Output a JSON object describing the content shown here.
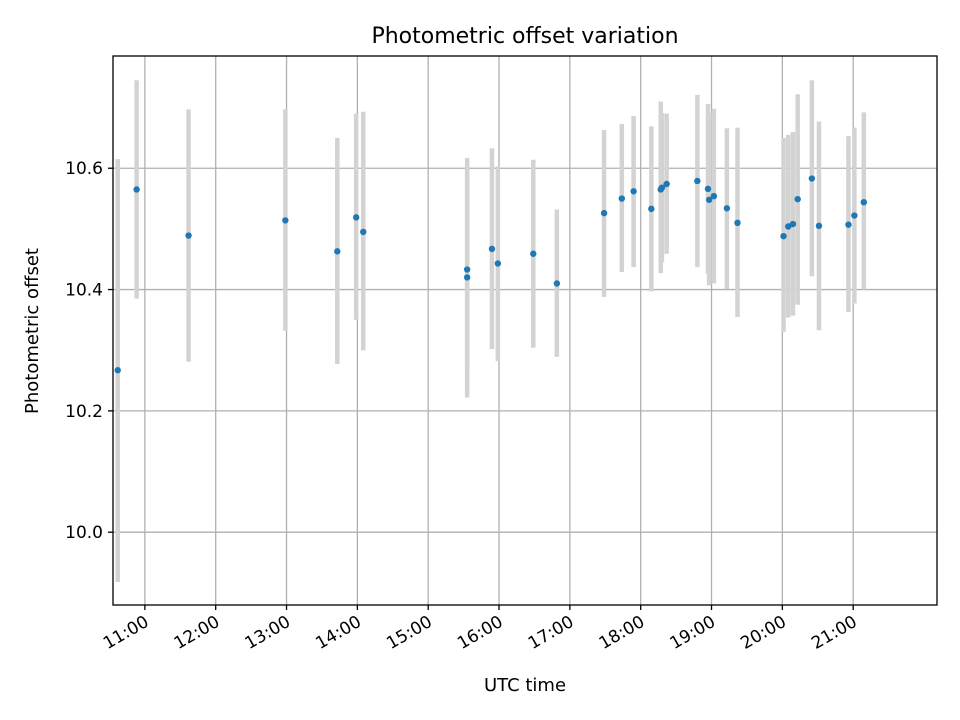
{
  "chart_data": {
    "type": "scatter",
    "title": "Photometric offset variation",
    "xlabel": "UTC time",
    "ylabel": "Photometric offset",
    "x_unit": "hour",
    "xlim": [
      "10:33",
      "22:11"
    ],
    "ylim": [
      9.88,
      10.785
    ],
    "x_ticks": [
      "11:00",
      "12:00",
      "13:00",
      "14:00",
      "15:00",
      "16:00",
      "17:00",
      "18:00",
      "19:00",
      "20:00",
      "21:00"
    ],
    "y_ticks": [
      "10.0",
      "10.2",
      "10.4",
      "10.6"
    ],
    "grid": true,
    "colors": {
      "point": "#1f77b4",
      "errorbar": "#d3d3d3"
    },
    "points": [
      {
        "x": "10:37",
        "y": 10.267,
        "y_low": 9.918,
        "y_high": 10.615
      },
      {
        "x": "10:53",
        "y": 10.565,
        "y_low": 10.385,
        "y_high": 10.745
      },
      {
        "x": "11:37",
        "y": 10.489,
        "y_low": 10.281,
        "y_high": 10.697
      },
      {
        "x": "12:59",
        "y": 10.514,
        "y_low": 10.332,
        "y_high": 10.697
      },
      {
        "x": "13:43",
        "y": 10.463,
        "y_low": 10.277,
        "y_high": 10.65
      },
      {
        "x": "13:59",
        "y": 10.519,
        "y_low": 10.35,
        "y_high": 10.69
      },
      {
        "x": "14:05",
        "y": 10.495,
        "y_low": 10.3,
        "y_high": 10.693
      },
      {
        "x": "15:33",
        "y": 10.42,
        "y_low": 10.222,
        "y_high": 10.617
      },
      {
        "x": "15:33",
        "y": 10.433,
        "y_low": 10.263,
        "y_high": 10.603
      },
      {
        "x": "15:54",
        "y": 10.467,
        "y_low": 10.302,
        "y_high": 10.633
      },
      {
        "x": "15:59",
        "y": 10.443,
        "y_low": 10.282,
        "y_high": 10.603
      },
      {
        "x": "16:29",
        "y": 10.459,
        "y_low": 10.304,
        "y_high": 10.614
      },
      {
        "x": "16:49",
        "y": 10.41,
        "y_low": 10.289,
        "y_high": 10.532
      },
      {
        "x": "17:29",
        "y": 10.526,
        "y_low": 10.388,
        "y_high": 10.663
      },
      {
        "x": "17:44",
        "y": 10.55,
        "y_low": 10.429,
        "y_high": 10.673
      },
      {
        "x": "17:54",
        "y": 10.562,
        "y_low": 10.437,
        "y_high": 10.686
      },
      {
        "x": "18:09",
        "y": 10.533,
        "y_low": 10.397,
        "y_high": 10.669
      },
      {
        "x": "18:17",
        "y": 10.565,
        "y_low": 10.427,
        "y_high": 10.71
      },
      {
        "x": "18:18",
        "y": 10.568,
        "y_low": 10.445,
        "y_high": 10.691
      },
      {
        "x": "18:22",
        "y": 10.574,
        "y_low": 10.459,
        "y_high": 10.69
      },
      {
        "x": "18:48",
        "y": 10.579,
        "y_low": 10.437,
        "y_high": 10.721
      },
      {
        "x": "18:57",
        "y": 10.566,
        "y_low": 10.426,
        "y_high": 10.706
      },
      {
        "x": "18:58",
        "y": 10.548,
        "y_low": 10.407,
        "y_high": 10.69
      },
      {
        "x": "19:02",
        "y": 10.554,
        "y_low": 10.41,
        "y_high": 10.698
      },
      {
        "x": "19:13",
        "y": 10.534,
        "y_low": 10.401,
        "y_high": 10.666
      },
      {
        "x": "19:22",
        "y": 10.51,
        "y_low": 10.355,
        "y_high": 10.667
      },
      {
        "x": "20:01",
        "y": 10.488,
        "y_low": 10.33,
        "y_high": 10.65
      },
      {
        "x": "20:05",
        "y": 10.504,
        "y_low": 10.354,
        "y_high": 10.655
      },
      {
        "x": "20:09",
        "y": 10.508,
        "y_low": 10.357,
        "y_high": 10.66
      },
      {
        "x": "20:13",
        "y": 10.549,
        "y_low": 10.375,
        "y_high": 10.722
      },
      {
        "x": "20:25",
        "y": 10.583,
        "y_low": 10.422,
        "y_high": 10.745
      },
      {
        "x": "20:31",
        "y": 10.505,
        "y_low": 10.333,
        "y_high": 10.677
      },
      {
        "x": "20:56",
        "y": 10.507,
        "y_low": 10.363,
        "y_high": 10.653
      },
      {
        "x": "21:01",
        "y": 10.522,
        "y_low": 10.377,
        "y_high": 10.667
      },
      {
        "x": "21:09",
        "y": 10.544,
        "y_low": 10.4,
        "y_high": 10.692
      }
    ]
  }
}
